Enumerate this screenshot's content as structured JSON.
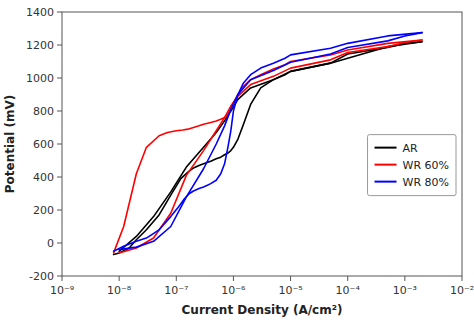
{
  "chart_data": {
    "type": "line",
    "xlabel": "Current Density (A/cm²)",
    "ylabel": "Potential (mV)",
    "log": "x",
    "grid": false,
    "legend": "right",
    "xlim": [
      1e-09,
      0.01
    ],
    "xticks": [
      {
        "value": 1e-09,
        "label": "10⁻⁹"
      },
      {
        "value": 1e-08,
        "label": "10⁻⁸"
      },
      {
        "value": 1e-07,
        "label": "10⁻⁷"
      },
      {
        "value": 1e-06,
        "label": "10⁻⁶"
      },
      {
        "value": 1e-05,
        "label": "10⁻⁵"
      },
      {
        "value": 0.0001,
        "label": "10⁻⁴"
      },
      {
        "value": 0.001,
        "label": "10⁻³"
      },
      {
        "value": 0.01,
        "label": "10⁻²"
      }
    ],
    "ylim": [
      -200,
      1400
    ],
    "yticks": [
      -200,
      0,
      200,
      400,
      600,
      800,
      1000,
      1200,
      1400
    ],
    "series": [
      {
        "name": "AR",
        "color": "black",
        "x": [
          8e-09,
          1e-08,
          1.5e-08,
          2e-08,
          3e-08,
          5e-08,
          8e-08,
          1.2e-07,
          1.6e-07,
          2e-07,
          2.5e-07,
          3e-07,
          4e-07,
          5e-07,
          6e-07,
          7e-07,
          8e-07,
          9e-07,
          1e-06,
          1.2e-06,
          1.5e-06,
          2e-06,
          3e-06,
          5e-06,
          8e-06,
          1e-05,
          5e-05,
          0.0001,
          0.0005,
          0.002
        ],
        "values": [
          -70,
          -60,
          -30,
          20,
          80,
          170,
          290,
          390,
          430,
          455,
          470,
          480,
          495,
          510,
          520,
          535,
          545,
          560,
          580,
          630,
          720,
          840,
          940,
          990,
          1020,
          1040,
          1090,
          1120,
          1190,
          1220
        ]
      },
      {
        "color": "black",
        "x": [
          0.002,
          0.001,
          0.0005,
          0.0001,
          5e-05,
          1e-05,
          5e-06,
          2e-06,
          1.2e-06,
          9e-07,
          7e-07,
          5e-07,
          3e-07,
          1.5e-07,
          8e-08,
          4e-08,
          2e-08,
          1e-08
        ],
        "values": [
          1220,
          1210,
          1185,
          1145,
          1090,
          1040,
          990,
          940,
          870,
          800,
          740,
          670,
          580,
          460,
          310,
          160,
          40,
          -50
        ]
      },
      {
        "name": "WR 60%",
        "color": "red",
        "x": [
          8e-09,
          1.2e-08,
          2e-08,
          3e-08,
          5e-08,
          7e-08,
          1e-07,
          1.3e-07,
          1.6e-07,
          2e-07,
          2.5e-07,
          3e-07,
          4e-07,
          5e-07,
          6e-07,
          7e-07,
          8e-07,
          9e-07,
          1e-06,
          1.2e-06,
          1.5e-06,
          2e-06,
          3e-06,
          5e-06,
          8e-06,
          1e-05,
          5e-05,
          0.0001,
          0.0005,
          0.002
        ],
        "values": [
          -60,
          100,
          420,
          580,
          650,
          670,
          680,
          685,
          690,
          700,
          710,
          720,
          730,
          740,
          750,
          760,
          780,
          810,
          850,
          900,
          950,
          990,
          1020,
          1055,
          1080,
          1100,
          1140,
          1170,
          1210,
          1230
        ]
      },
      {
        "color": "red",
        "x": [
          0.002,
          0.001,
          0.0005,
          0.0001,
          5e-05,
          1e-05,
          5e-06,
          2e-06,
          1.2e-06,
          9e-07,
          7e-07,
          5e-07,
          3e-07,
          1.5e-07,
          8e-08,
          4e-08,
          2e-08,
          1e-08
        ],
        "values": [
          1230,
          1215,
          1190,
          1155,
          1110,
          1060,
          1010,
          960,
          890,
          830,
          760,
          680,
          560,
          410,
          180,
          30,
          -30,
          -60
        ]
      },
      {
        "name": "WR 80%",
        "color": "blue",
        "x": [
          8e-09,
          1.2e-08,
          2e-08,
          3e-08,
          5e-08,
          8e-08,
          1.1e-07,
          1.4e-07,
          1.7e-07,
          2e-07,
          2.5e-07,
          3e-07,
          3.5e-07,
          4e-07,
          5e-07,
          6e-07,
          7e-07,
          8e-07,
          9e-07,
          1e-06,
          1.2e-06,
          1.5e-06,
          2e-06,
          3e-06,
          5e-06,
          8e-06,
          1e-05,
          5e-05,
          0.0001,
          0.0005,
          0.002
        ],
        "values": [
          -50,
          -20,
          10,
          30,
          80,
          160,
          220,
          270,
          300,
          315,
          330,
          340,
          350,
          360,
          380,
          420,
          480,
          580,
          680,
          800,
          900,
          970,
          1020,
          1060,
          1090,
          1120,
          1140,
          1180,
          1210,
          1255,
          1275
        ]
      },
      {
        "color": "blue",
        "x": [
          0.002,
          0.001,
          0.0005,
          0.0001,
          5e-05,
          1e-05,
          5e-06,
          2e-06,
          1.2e-06,
          9e-07,
          7e-07,
          5e-07,
          3e-07,
          1.5e-07,
          8e-08,
          4e-08,
          2e-08,
          1e-08
        ],
        "values": [
          1275,
          1255,
          1225,
          1185,
          1145,
          1095,
          1045,
          990,
          900,
          810,
          710,
          600,
          450,
          280,
          100,
          10,
          -25,
          -40
        ]
      }
    ]
  }
}
